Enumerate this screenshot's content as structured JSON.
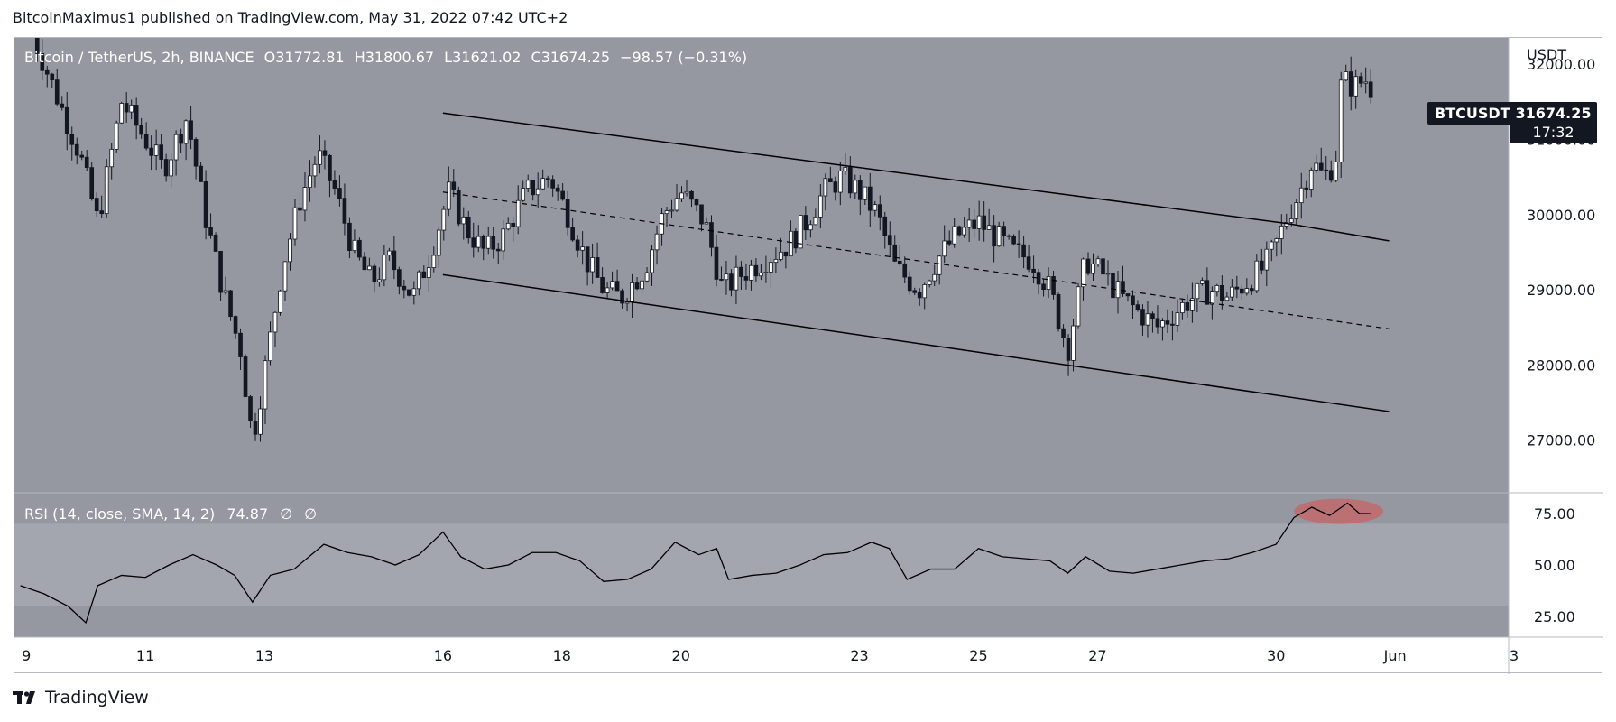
{
  "banner": "BitcoinMaximus1 published on TradingView.com, May 31, 2022 07:42 UTC+2",
  "footer": {
    "brand": "TradingView",
    "logo_icon": "tradingview-logo-icon"
  },
  "legend": {
    "symbol": "Bitcoin / TetherUS, 2h, BINANCE",
    "open_key": "O",
    "open": "31772.81",
    "high_key": "H",
    "high": "31800.67",
    "low_key": "L",
    "low": "31621.02",
    "close_key": "C",
    "close": "31674.25",
    "change": "−98.57 (−0.31%)"
  },
  "rsi_legend": {
    "title": "RSI (14, close, SMA, 14, 2)",
    "value": "74.87",
    "s1": "∅",
    "s2": "∅"
  },
  "price_axis": {
    "currency": "USDT",
    "ticker_tag": "BTCUSDT",
    "last_price": "31674.25",
    "countdown": "17:32"
  },
  "colors": {
    "pane_bg": "#9598a1",
    "rsi_band": "#a3a6ae",
    "candle": "#131722",
    "line": "#000000",
    "rsi_highlight": "#c86464",
    "label": "#ffffff"
  },
  "chart_data": {
    "type": "candlestick",
    "price_ylim": [
      26300,
      32350
    ],
    "price_ticks": [
      "32000.00",
      "31000.00",
      "30000.00",
      "29000.00",
      "28000.00",
      "27000.00"
    ],
    "rsi_ylim": [
      15,
      85
    ],
    "rsi_ticks": [
      "75.00",
      "50.00",
      "25.00"
    ],
    "rsi_band": [
      30,
      70
    ],
    "x_ticks": [
      "9",
      "11",
      "13",
      "16",
      "18",
      "20",
      "23",
      "25",
      "27",
      "30",
      "Jun",
      "3"
    ],
    "x_tick_values": [
      9,
      11,
      13,
      16,
      18,
      20,
      23,
      25,
      27,
      30,
      32,
      34
    ],
    "x_range": [
      8.8,
      35.5
    ],
    "channel": {
      "upper": [
        [
          16.0,
          31350
        ],
        [
          30.2,
          29880
        ],
        [
          31.9,
          29650
        ]
      ],
      "middle": [
        [
          16.0,
          30300
        ],
        [
          31.9,
          28480
        ]
      ],
      "lower": [
        [
          16.0,
          29200
        ],
        [
          31.9,
          27380
        ]
      ]
    },
    "ohlc_path": [
      [
        9.1,
        32400
      ],
      [
        9.5,
        31600
      ],
      [
        9.9,
        30800
      ],
      [
        10.2,
        29900
      ],
      [
        10.6,
        31500
      ],
      [
        11.0,
        31000
      ],
      [
        11.3,
        30600
      ],
      [
        11.7,
        31300
      ],
      [
        12.0,
        30000
      ],
      [
        12.3,
        29000
      ],
      [
        12.6,
        28200
      ],
      [
        12.8,
        27000
      ],
      [
        13.0,
        27900
      ],
      [
        13.3,
        29300
      ],
      [
        13.6,
        30200
      ],
      [
        13.9,
        30800
      ],
      [
        14.2,
        30300
      ],
      [
        14.5,
        29500
      ],
      [
        14.8,
        29100
      ],
      [
        15.1,
        29400
      ],
      [
        15.5,
        28900
      ],
      [
        15.8,
        29500
      ],
      [
        16.1,
        30300
      ],
      [
        16.4,
        29800
      ],
      [
        16.7,
        29500
      ],
      [
        17.0,
        29700
      ],
      [
        17.4,
        30300
      ],
      [
        17.8,
        30500
      ],
      [
        18.1,
        30000
      ],
      [
        18.4,
        29400
      ],
      [
        18.7,
        29000
      ],
      [
        19.0,
        28900
      ],
      [
        19.4,
        29300
      ],
      [
        19.7,
        30000
      ],
      [
        20.0,
        30300
      ],
      [
        20.4,
        29900
      ],
      [
        20.7,
        29000
      ],
      [
        21.0,
        29200
      ],
      [
        21.4,
        29400
      ],
      [
        21.8,
        29600
      ],
      [
        22.1,
        29900
      ],
      [
        22.4,
        30300
      ],
      [
        22.7,
        30500
      ],
      [
        23.0,
        30300
      ],
      [
        23.3,
        30000
      ],
      [
        23.6,
        29300
      ],
      [
        24.0,
        29000
      ],
      [
        24.3,
        29400
      ],
      [
        24.6,
        29700
      ],
      [
        25.0,
        29900
      ],
      [
        25.3,
        29700
      ],
      [
        25.6,
        29500
      ],
      [
        25.9,
        29400
      ],
      [
        26.2,
        29000
      ],
      [
        26.5,
        28200
      ],
      [
        26.8,
        29400
      ],
      [
        27.1,
        29200
      ],
      [
        27.4,
        28900
      ],
      [
        27.7,
        28700
      ],
      [
        28.0,
        28500
      ],
      [
        28.3,
        28700
      ],
      [
        28.6,
        28900
      ],
      [
        28.9,
        29000
      ],
      [
        29.2,
        28900
      ],
      [
        29.5,
        29100
      ],
      [
        29.8,
        29300
      ],
      [
        30.0,
        29600
      ],
      [
        30.2,
        30000
      ],
      [
        30.4,
        30300
      ],
      [
        30.6,
        30700
      ],
      [
        30.8,
        30500
      ],
      [
        31.0,
        30700
      ],
      [
        31.1,
        31800
      ],
      [
        31.3,
        31700
      ],
      [
        31.5,
        31800
      ],
      [
        31.6,
        31674
      ]
    ],
    "rsi_path": [
      [
        8.9,
        40
      ],
      [
        9.3,
        36
      ],
      [
        9.7,
        30
      ],
      [
        10.0,
        22
      ],
      [
        10.2,
        40
      ],
      [
        10.6,
        45
      ],
      [
        11.0,
        44
      ],
      [
        11.4,
        50
      ],
      [
        11.8,
        55
      ],
      [
        12.2,
        50
      ],
      [
        12.5,
        45
      ],
      [
        12.8,
        32
      ],
      [
        13.1,
        45
      ],
      [
        13.5,
        48
      ],
      [
        14.0,
        60
      ],
      [
        14.4,
        56
      ],
      [
        14.8,
        54
      ],
      [
        15.2,
        50
      ],
      [
        15.6,
        55
      ],
      [
        16.0,
        66
      ],
      [
        16.3,
        54
      ],
      [
        16.7,
        48
      ],
      [
        17.1,
        50
      ],
      [
        17.5,
        56
      ],
      [
        17.9,
        56
      ],
      [
        18.3,
        52
      ],
      [
        18.7,
        42
      ],
      [
        19.1,
        43
      ],
      [
        19.5,
        48
      ],
      [
        19.9,
        61
      ],
      [
        20.3,
        55
      ],
      [
        20.6,
        58
      ],
      [
        20.8,
        43
      ],
      [
        21.2,
        45
      ],
      [
        21.6,
        46
      ],
      [
        22.0,
        50
      ],
      [
        22.4,
        55
      ],
      [
        22.8,
        56
      ],
      [
        23.2,
        61
      ],
      [
        23.5,
        58
      ],
      [
        23.8,
        43
      ],
      [
        24.2,
        48
      ],
      [
        24.6,
        48
      ],
      [
        25.0,
        58
      ],
      [
        25.4,
        54
      ],
      [
        25.8,
        53
      ],
      [
        26.2,
        52
      ],
      [
        26.5,
        46
      ],
      [
        26.8,
        54
      ],
      [
        27.2,
        47
      ],
      [
        27.6,
        46
      ],
      [
        28.0,
        48
      ],
      [
        28.4,
        50
      ],
      [
        28.8,
        52
      ],
      [
        29.2,
        53
      ],
      [
        29.6,
        56
      ],
      [
        30.0,
        60
      ],
      [
        30.3,
        73
      ],
      [
        30.6,
        78
      ],
      [
        30.9,
        74
      ],
      [
        31.2,
        80
      ],
      [
        31.4,
        75
      ],
      [
        31.6,
        74.87
      ]
    ],
    "rsi_highlight_x": [
      30.3,
      31.8
    ]
  }
}
